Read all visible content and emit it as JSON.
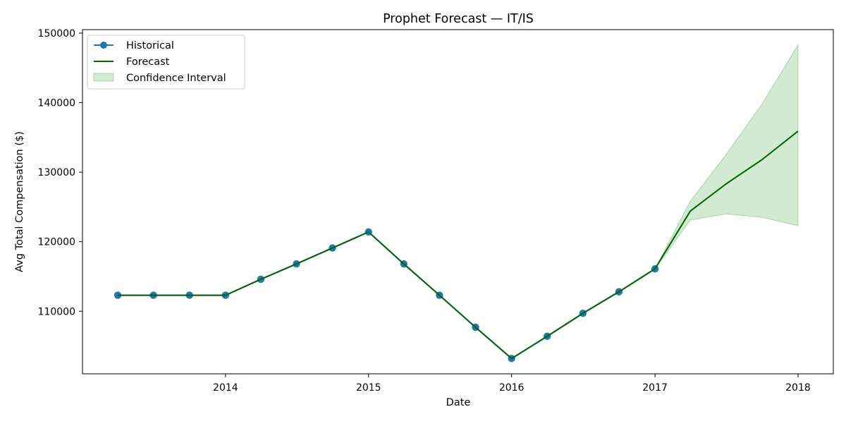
{
  "chart_data": {
    "type": "line",
    "title": "Prophet Forecast — IT/IS",
    "xlabel": "Date",
    "ylabel": "Avg Total Compensation ($)",
    "x_axis_type": "date",
    "xlim": [
      "2013-01-01",
      "2018-04-01"
    ],
    "ylim": [
      101000,
      150500
    ],
    "x_ticks": [
      "2014",
      "2015",
      "2016",
      "2017",
      "2018"
    ],
    "x_tick_dates": [
      "2014-01-01",
      "2015-01-01",
      "2016-01-01",
      "2017-01-01",
      "2018-01-01"
    ],
    "y_ticks": [
      110000,
      120000,
      130000,
      140000,
      150000
    ],
    "y_tick_labels": [
      "110000",
      "120000",
      "130000",
      "140000",
      "150000"
    ],
    "grid": false,
    "legend_position": "upper-left",
    "series": [
      {
        "name": "Historical",
        "kind": "line-marker",
        "color": "#1f77b4",
        "x": [
          "2013-04-01",
          "2013-07-01",
          "2013-10-01",
          "2014-01-01",
          "2014-04-01",
          "2014-07-01",
          "2014-10-01",
          "2015-01-01",
          "2015-04-01",
          "2015-07-01",
          "2015-10-01",
          "2016-01-01",
          "2016-04-01",
          "2016-07-01",
          "2016-10-01",
          "2017-01-01"
        ],
        "y": [
          112300,
          112300,
          112300,
          112300,
          114600,
          116800,
          119100,
          121400,
          116800,
          112300,
          107700,
          103200,
          106400,
          109700,
          112800,
          116100
        ]
      },
      {
        "name": "Forecast",
        "kind": "line",
        "color": "#006400",
        "x": [
          "2013-04-01",
          "2013-07-01",
          "2013-10-01",
          "2014-01-01",
          "2014-04-01",
          "2014-07-01",
          "2014-10-01",
          "2015-01-01",
          "2015-04-01",
          "2015-07-01",
          "2015-10-01",
          "2016-01-01",
          "2016-04-01",
          "2016-07-01",
          "2016-10-01",
          "2017-01-01",
          "2017-04-01",
          "2017-07-01",
          "2017-10-01",
          "2018-01-01"
        ],
        "y": [
          112300,
          112300,
          112300,
          112300,
          114600,
          116800,
          119100,
          121400,
          116800,
          112300,
          107700,
          103200,
          106400,
          109700,
          112800,
          116100,
          124400,
          128300,
          131800,
          135900
        ]
      },
      {
        "name": "Confidence Interval",
        "kind": "band",
        "color": "#2ca02c",
        "x": [
          "2017-01-01",
          "2017-04-01",
          "2017-07-01",
          "2017-10-01",
          "2018-01-01"
        ],
        "lower": [
          116100,
          123100,
          124000,
          123500,
          122300
        ],
        "upper": [
          116100,
          125800,
          132500,
          139800,
          148300
        ]
      }
    ]
  }
}
